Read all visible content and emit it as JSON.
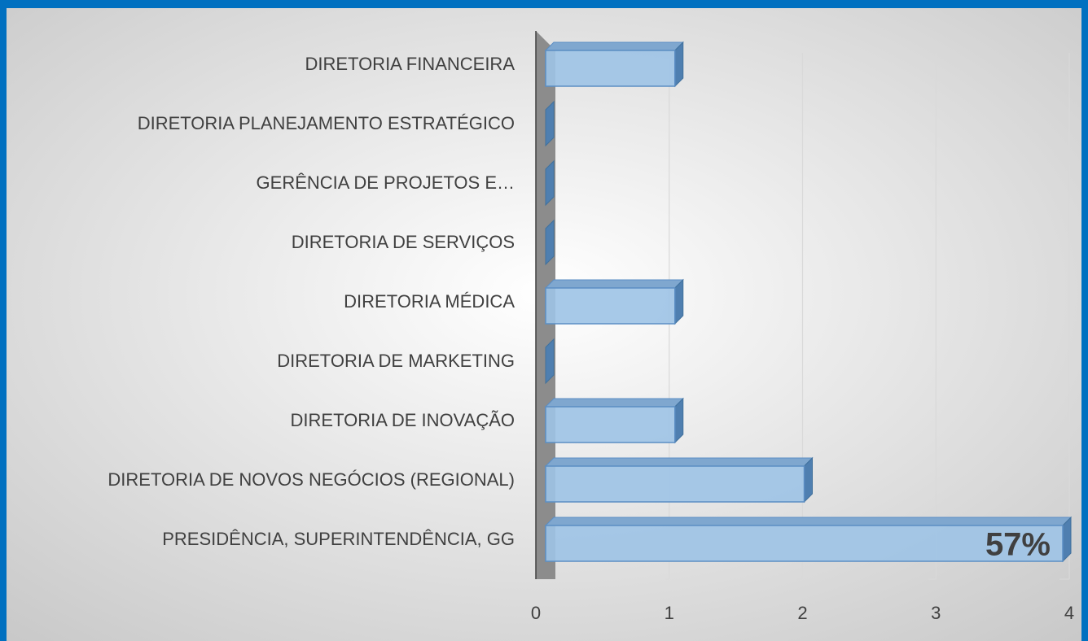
{
  "chart_data": {
    "type": "bar3d_horizontal",
    "categories": [
      "DIRETORIA FINANCEIRA",
      "DIRETORIA PLANEJAMENTO ESTRATÉGICO",
      "GERÊNCIA DE PROJETOS E…",
      "DIRETORIA DE SERVIÇOS ",
      "DIRETORIA MÉDICA",
      "DIRETORIA DE MARKETING",
      "DIRETORIA DE INOVAÇÃO",
      "DIRETORIA DE NOVOS NEGÓCIOS (REGIONAL)",
      "PRESIDÊNCIA, SUPERINTENDÊNCIA, GG"
    ],
    "values": [
      1,
      0,
      0,
      0,
      1,
      0,
      1,
      2,
      4
    ],
    "color": "#9dc3e6",
    "xlim": [
      0,
      4
    ],
    "xticks": [
      0,
      1,
      2,
      3,
      4
    ],
    "grid": true,
    "annotation": "57%"
  }
}
